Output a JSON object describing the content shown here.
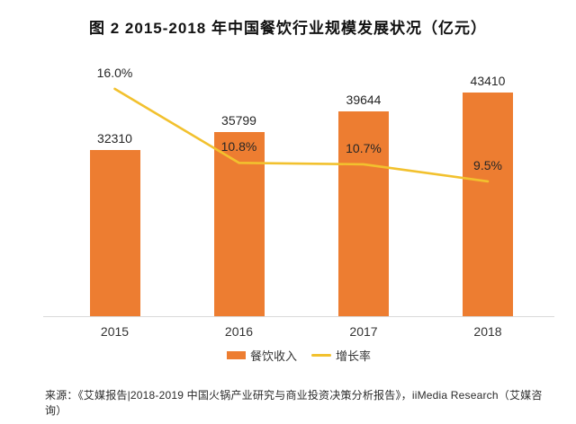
{
  "title": "图 2  2015-2018 年中国餐饮行业规模发展状况（亿元）",
  "source": "来源：《艾媒报告|2018-2019 中国火锅产业研究与商业投资决策分析报告》，iiMedia Research（艾媒咨询）",
  "legend": {
    "bar_label": "餐饮收入",
    "line_label": "增长率"
  },
  "colors": {
    "bar": "#ED7D31",
    "line": "#F2C12E",
    "axis": "#D9D9D9",
    "label_text": "#262626"
  },
  "chart_data": {
    "type": "bar",
    "subtype": "bar+line-combo",
    "title": "图 2  2015-2018 年中国餐饮行业规模发展状况（亿元）",
    "categories": [
      "2015",
      "2016",
      "2017",
      "2018"
    ],
    "series": [
      {
        "name": "餐饮收入",
        "type": "bar",
        "unit": "亿元",
        "values": [
          32310,
          35799,
          39644,
          43410
        ],
        "labels": [
          "32310",
          "35799",
          "39644",
          "43410"
        ]
      },
      {
        "name": "增长率",
        "type": "line",
        "unit": "%",
        "values": [
          16.0,
          10.8,
          10.7,
          9.5
        ],
        "labels": [
          "16.0%",
          "10.8%",
          "10.7%",
          "9.5%"
        ]
      }
    ],
    "y_axis_left_visible": false,
    "y_axis_right_visible": false,
    "bar_ylim": [
      0,
      61250
    ],
    "line_ylim": [
      0,
      22.2
    ],
    "grid": false,
    "legend_position": "bottom",
    "data_labels": "shown"
  }
}
